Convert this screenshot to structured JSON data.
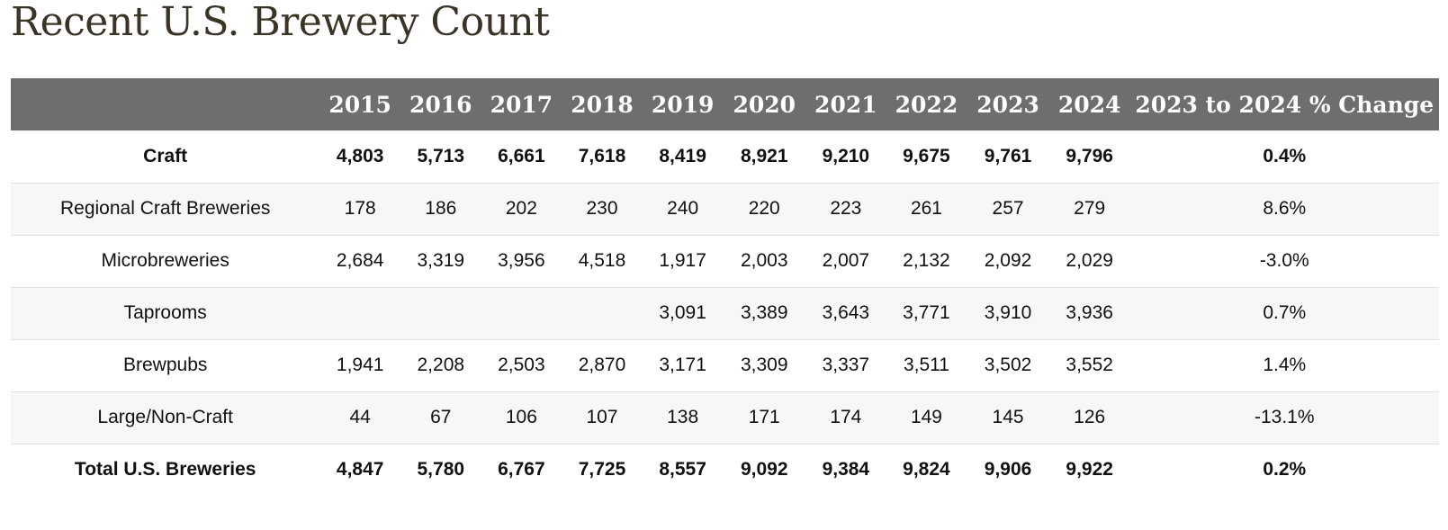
{
  "page": {
    "title": "Recent U.S. Brewery Count"
  },
  "chart_data": {
    "type": "table",
    "columns": [
      "",
      "2015",
      "2016",
      "2017",
      "2018",
      "2019",
      "2020",
      "2021",
      "2022",
      "2023",
      "2024",
      "2023 to 2024 % Change"
    ],
    "rows": [
      {
        "label": "Craft",
        "bold": true,
        "values": [
          "4,803",
          "5,713",
          "6,661",
          "7,618",
          "8,419",
          "8,921",
          "9,210",
          "9,675",
          "9,761",
          "9,796"
        ],
        "change": "0.4%"
      },
      {
        "label": "Regional Craft Breweries",
        "bold": false,
        "values": [
          "178",
          "186",
          "202",
          "230",
          "240",
          "220",
          "223",
          "261",
          "257",
          "279"
        ],
        "change": "8.6%"
      },
      {
        "label": "Microbreweries",
        "bold": false,
        "values": [
          "2,684",
          "3,319",
          "3,956",
          "4,518",
          "1,917",
          "2,003",
          "2,007",
          "2,132",
          "2,092",
          "2,029"
        ],
        "change": "-3.0%"
      },
      {
        "label": "Taprooms",
        "bold": false,
        "values": [
          "",
          "",
          "",
          "",
          "3,091",
          "3,389",
          "3,643",
          "3,771",
          "3,910",
          "3,936"
        ],
        "change": "0.7%"
      },
      {
        "label": "Brewpubs",
        "bold": false,
        "values": [
          "1,941",
          "2,208",
          "2,503",
          "2,870",
          "3,171",
          "3,309",
          "3,337",
          "3,511",
          "3,502",
          "3,552"
        ],
        "change": "1.4%"
      },
      {
        "label": "Large/Non-Craft",
        "bold": false,
        "values": [
          "44",
          "67",
          "106",
          "107",
          "138",
          "171",
          "174",
          "149",
          "145",
          "126"
        ],
        "change": "-13.1%"
      },
      {
        "label": "Total U.S. Breweries",
        "bold": true,
        "values": [
          "4,847",
          "5,780",
          "6,767",
          "7,725",
          "8,557",
          "9,092",
          "9,384",
          "9,824",
          "9,906",
          "9,922"
        ],
        "change": "0.2%"
      }
    ],
    "colors": {
      "header_bg": "#6e6e6e",
      "header_text": "#ffffff",
      "title_text": "#3a3426",
      "stripe_bg": "#f7f7f7"
    }
  }
}
